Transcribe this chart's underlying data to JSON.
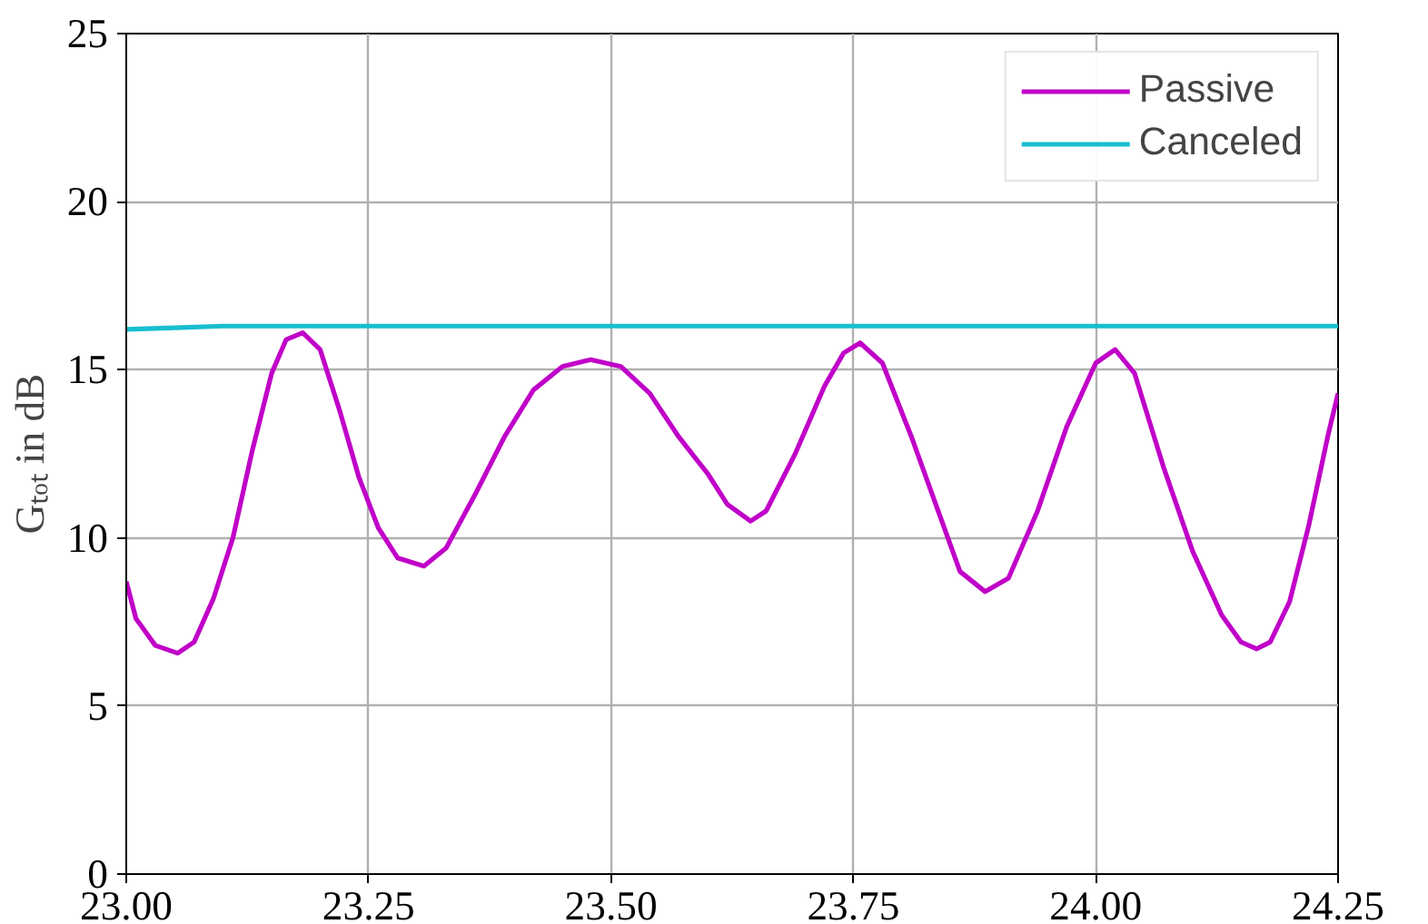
{
  "chart_data": {
    "type": "line",
    "ylabel": "Gₜₒₜ in dB",
    "xlim": [
      23.0,
      24.25
    ],
    "ylim": [
      0,
      25
    ],
    "xticks": [
      {
        "value": 23.0,
        "label": "23.00"
      },
      {
        "value": 23.25,
        "label": "23.25"
      },
      {
        "value": 23.5,
        "label": "23.50"
      },
      {
        "value": 23.75,
        "label": "23.75"
      },
      {
        "value": 24.0,
        "label": "24.00"
      },
      {
        "value": 24.25,
        "label": "24.25"
      }
    ],
    "yticks": [
      0,
      5,
      10,
      15,
      20,
      25
    ],
    "grid": true,
    "legend": "top right",
    "line_style": "solid",
    "marker": "none",
    "series": [
      {
        "name": "Passive",
        "color": "#c000c8",
        "x": [
          23.0,
          23.01,
          23.03,
          23.053,
          23.07,
          23.09,
          23.11,
          23.13,
          23.15,
          23.165,
          23.182,
          23.2,
          23.22,
          23.24,
          23.26,
          23.28,
          23.307,
          23.33,
          23.36,
          23.39,
          23.42,
          23.45,
          23.479,
          23.51,
          23.54,
          23.57,
          23.6,
          23.62,
          23.644,
          23.66,
          23.69,
          23.72,
          23.74,
          23.757,
          23.78,
          23.81,
          23.84,
          23.86,
          23.886,
          23.91,
          23.94,
          23.97,
          24.0,
          24.02,
          24.04,
          24.07,
          24.1,
          24.13,
          24.15,
          24.166,
          24.18,
          24.2,
          24.22,
          24.24,
          24.25
        ],
        "values": [
          8.7,
          7.6,
          6.8,
          6.57,
          6.9,
          8.2,
          10.0,
          12.6,
          14.9,
          15.9,
          16.1,
          15.6,
          13.8,
          11.8,
          10.3,
          9.4,
          9.16,
          9.7,
          11.3,
          13.0,
          14.4,
          15.1,
          15.3,
          15.1,
          14.3,
          13.0,
          11.9,
          11.0,
          10.5,
          10.8,
          12.5,
          14.5,
          15.5,
          15.8,
          15.2,
          13.0,
          10.6,
          9.0,
          8.4,
          8.8,
          10.8,
          13.3,
          15.2,
          15.6,
          14.9,
          12.1,
          9.6,
          7.7,
          6.9,
          6.7,
          6.9,
          8.1,
          10.4,
          13.1,
          14.3
        ]
      },
      {
        "name": "Canceled",
        "color": "#17becf",
        "x": [
          23.0,
          23.05,
          23.1,
          23.5,
          24.0,
          24.25
        ],
        "values": [
          16.2,
          16.25,
          16.3,
          16.3,
          16.3,
          16.3
        ]
      }
    ]
  }
}
